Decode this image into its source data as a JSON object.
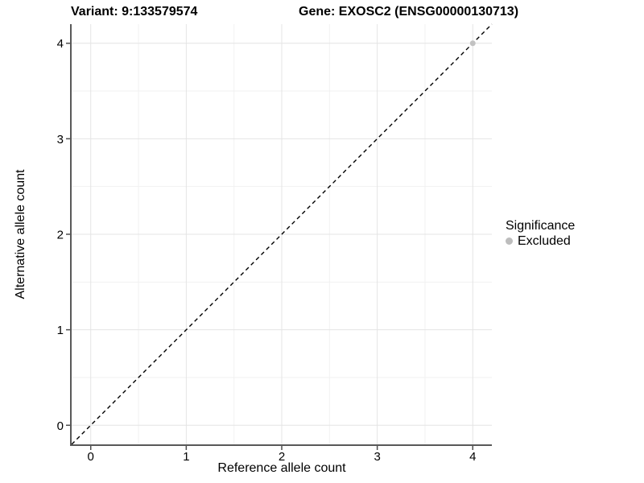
{
  "figure": {
    "background": "#ffffff"
  },
  "titles": {
    "variant": "Variant: 9:133579574",
    "gene": "Gene: EXOSC2 (ENSG00000130713)"
  },
  "chart_data": {
    "type": "scatter",
    "xlabel": "Reference allele count",
    "ylabel": "Alternative allele count",
    "xlim": [
      -0.2,
      4.2
    ],
    "ylim": [
      -0.2,
      4.2
    ],
    "xticks": [
      0,
      1,
      2,
      3,
      4
    ],
    "yticks": [
      0,
      1,
      2,
      3,
      4
    ],
    "minor_grid_positions": [
      0.5,
      1.5,
      2.5,
      3.5
    ],
    "grid": true,
    "points": [
      {
        "x": 4,
        "y": 4,
        "series": "Excluded"
      }
    ],
    "reference_line": {
      "type": "identity",
      "slope": 1,
      "intercept": 0,
      "style": "dashed",
      "color": "#000000"
    },
    "legend": {
      "position": "right",
      "title": "Significance",
      "items": [
        {
          "label": "Excluded",
          "color": "#bdbdbd"
        }
      ]
    },
    "colors": {
      "point_excluded": "#c2c2c2",
      "grid_major": "#e4e4e4",
      "grid_minor": "#f1f1f1",
      "axis_line": "#595959",
      "tick_mark": "#4d4d4d",
      "tick_label": "#000000"
    }
  }
}
